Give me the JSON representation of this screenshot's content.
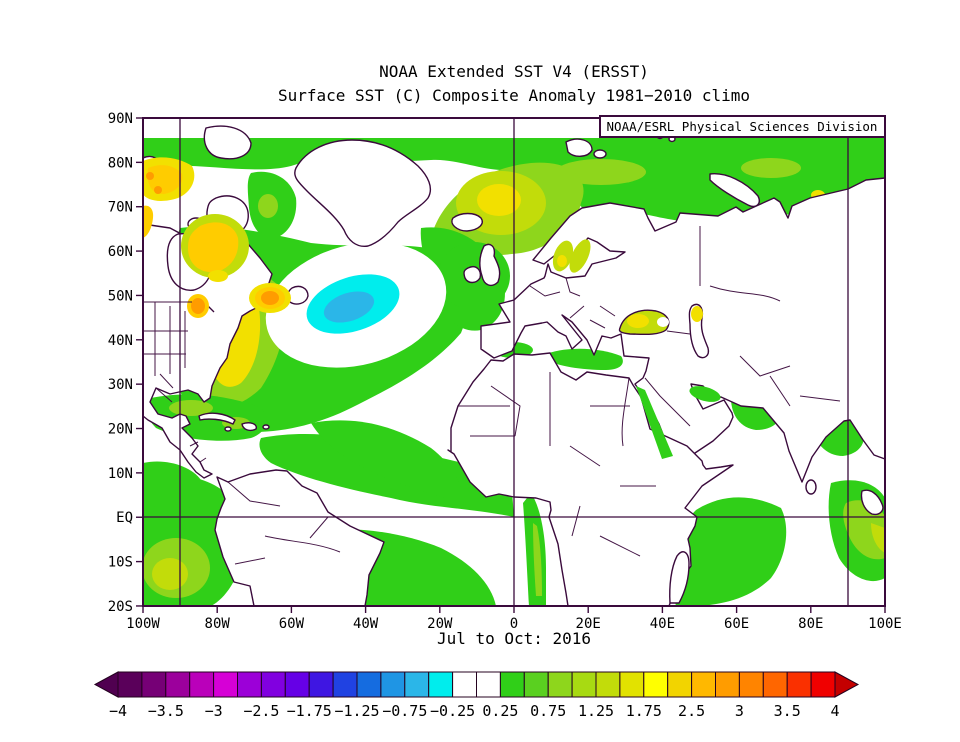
{
  "titles": {
    "line1": "NOAA Extended SST V4 (ERSST)",
    "line2": "Surface SST (C) Composite Anomaly 1981−2010 climo"
  },
  "credit": "NOAA/ESRL Physical Sciences Division",
  "date_label": "Jul to Oct: 2016",
  "axes": {
    "lat_labels": [
      "90N",
      "80N",
      "70N",
      "60N",
      "50N",
      "40N",
      "30N",
      "20N",
      "10N",
      "EQ",
      "10S",
      "20S"
    ],
    "lon_labels": [
      "100W",
      "80W",
      "60W",
      "40W",
      "20W",
      "0",
      "20E",
      "40E",
      "60E",
      "80E",
      "100E"
    ]
  },
  "colorbar": {
    "labels": [
      "−4",
      "−3.5",
      "−3",
      "−2.5",
      "−1.75",
      "−1.25",
      "−0.75",
      "−0.25",
      "0.25",
      "0.75",
      "1.25",
      "1.75",
      "2.5",
      "3",
      "3.5",
      "4"
    ],
    "cell_colors": [
      "#5a005a",
      "#760076",
      "#9c009c",
      "#ba00ba",
      "#d600d6",
      "#9c00d8",
      "#8100e0",
      "#6600e6",
      "#3f16e2",
      "#2042e2",
      "#156ce0",
      "#1f95e4",
      "#2bb6e8",
      "#00eded",
      "#ffffff",
      "#ffffff",
      "#30cf18",
      "#5ad020",
      "#8ed61c",
      "#a8da12",
      "#c2dc0a",
      "#e2e200",
      "#ffff00",
      "#f2d400",
      "#ffb800",
      "#ff9c00",
      "#ff8400",
      "#ff6600",
      "#fa3000",
      "#f00000"
    ],
    "left_arrow": "#500050",
    "right_arrow": "#c40000",
    "outline": "#24021f"
  },
  "map_palette": {
    "green": "#30cf18",
    "ygreen": "#8ed61c",
    "yellowgreen": "#c2dc0a",
    "yellow": "#f2e000",
    "gold": "#ffcc00",
    "orange": "#ff9c00",
    "cyan": "#00eded",
    "skyblue": "#2bb6e8",
    "white": "#ffffff",
    "coast": "#3a0a3c"
  },
  "chart_data": {
    "type": "heatmap",
    "title": "NOAA Extended SST V4 (ERSST)",
    "subtitle": "Surface SST (C) Composite Anomaly 1981−2010 climo",
    "period": "Jul to Oct: 2016",
    "credit": "NOAA/ESRL Physical Sciences Division",
    "units": "degC",
    "lon_range": [
      "100W",
      "100E"
    ],
    "lat_range": [
      "20S",
      "90N"
    ],
    "grid_lines": {
      "meridians": [
        "90W",
        "0",
        "90E"
      ],
      "parallels": [
        "EQ"
      ]
    },
    "levels": [
      -4,
      -3.5,
      -3,
      -2.5,
      -1.75,
      -1.25,
      -0.75,
      -0.25,
      0.25,
      0.75,
      1.25,
      1.75,
      2.5,
      3,
      3.5,
      4
    ],
    "neutral_band": [
      -0.25,
      0.25
    ],
    "features": [
      {
        "region": "North Atlantic cold blob south of Greenland (~45-52N, 30-45W)",
        "anomaly_c": -1.25
      },
      {
        "region": "NW Atlantic / Gulf Stream off New England and Gulf of St Lawrence",
        "anomaly_c": 1.75
      },
      {
        "region": "Hudson Strait / Foxe Basin and Canadian Arctic Archipelago",
        "anomaly_c": 1.75
      },
      {
        "region": "Norwegian Sea near Iceland-Norway",
        "anomaly_c": 1.25
      },
      {
        "region": "Barents and Kara Seas band (75-82N)",
        "anomaly_c": 1.0
      },
      {
        "region": "Baltic Sea and southern Scandinavia",
        "anomaly_c": 1.0
      },
      {
        "region": "Black Sea and northern Caspian",
        "anomaly_c": 1.25
      },
      {
        "region": "Mediterranean patches",
        "anomaly_c": 0.5
      },
      {
        "region": "Caribbean and tropical North Atlantic",
        "anomaly_c": 0.5
      },
      {
        "region": "Benguela coast (Angola)",
        "anomaly_c": 0.5
      },
      {
        "region": "Arabian Sea and Bay of Bengal patches",
        "anomaly_c": 0.5
      },
      {
        "region": "Equatorial Indian Ocean and SE corner near Sumatra",
        "anomaly_c": 0.75
      },
      {
        "region": "Eastern tropical Pacific corner (SW)",
        "anomaly_c": 0.75
      },
      {
        "region": "Most remaining ocean/land areas",
        "anomaly_c": 0.0
      }
    ]
  }
}
